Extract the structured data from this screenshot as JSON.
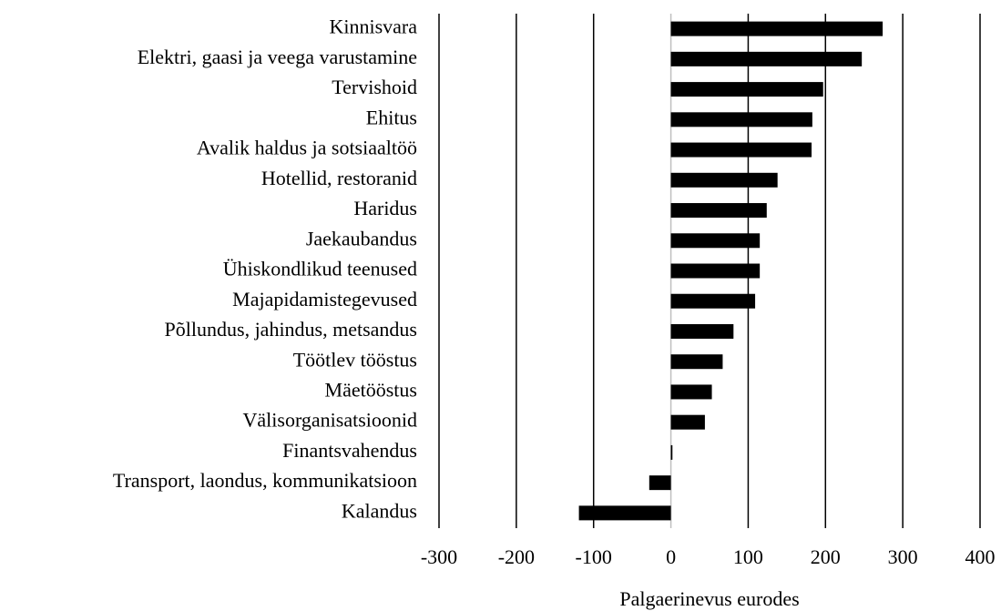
{
  "chart_data": {
    "type": "bar",
    "orientation": "horizontal",
    "x_label": "Palgaerinevus eurodes",
    "categories": [
      "Kinnisvara",
      "Elektri, gaasi ja veega varustamine",
      "Tervishoid",
      "Ehitus",
      "Avalik haldus ja sotsiaaltöö",
      "Hotellid, restoranid",
      "Haridus",
      "Jaekaubandus",
      "Ühiskondlikud teenused",
      "Majapidamistegevused",
      "Põllundus, jahindus, metsandus",
      "Töötlev tööstus",
      "Mäetööstus",
      "Välisorganisatsioonid",
      "Finantsvahendus",
      "Transport, laondus, kommunikatsioon",
      "Kalandus"
    ],
    "values": [
      274,
      247,
      197,
      183,
      182,
      138,
      124,
      115,
      115,
      109,
      81,
      67,
      53,
      44,
      2,
      -28,
      -119
    ],
    "color": "#000000",
    "xlim": [
      -300,
      400
    ],
    "xticks": [
      -300,
      -200,
      -100,
      0,
      100,
      200,
      300,
      400
    ],
    "grid": true
  }
}
